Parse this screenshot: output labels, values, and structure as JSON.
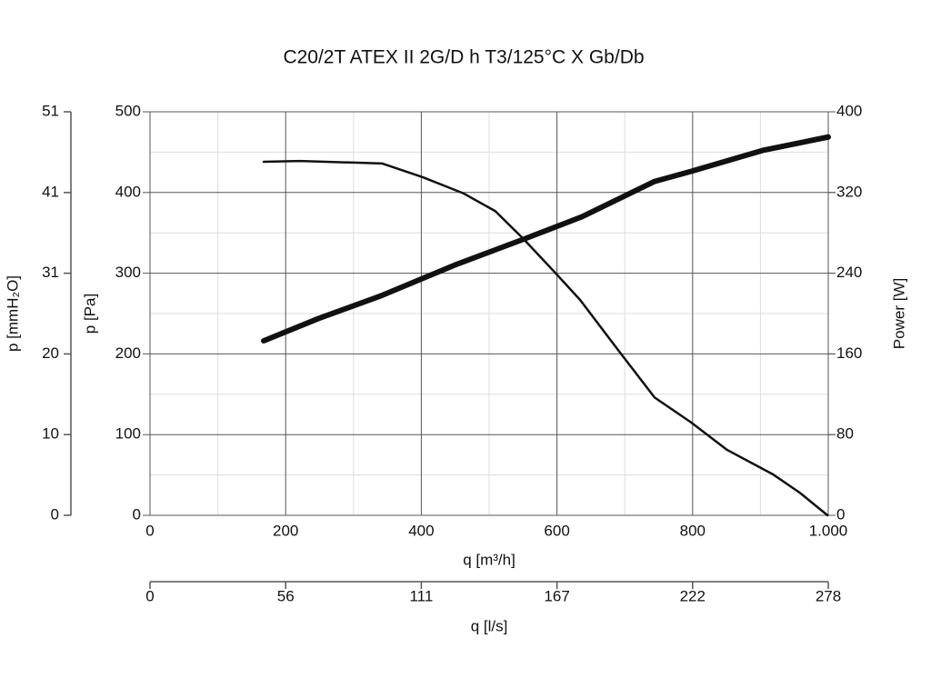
{
  "chart_data": {
    "type": "line",
    "title": "C20/2T ATEX II 2G/D h T3/125°C X Gb/Db",
    "xlabel": "q [m³/h]",
    "ylabel": "p [Pa]",
    "y2label": "Power [W]",
    "y3label": "p [mmH₂O]",
    "x2label": "q [l/s]",
    "xlim": [
      0,
      1000
    ],
    "xticks": [
      0,
      200,
      400,
      600,
      800,
      {
        "value": 1000,
        "label": "1.000"
      }
    ],
    "xminorticks": [
      100,
      300,
      500,
      700,
      900
    ],
    "ylim": [
      0,
      500
    ],
    "yticks": [
      0,
      100,
      200,
      300,
      400,
      500
    ],
    "yminorticks": [
      50,
      150,
      250,
      350,
      450
    ],
    "y2lim": [
      0,
      400
    ],
    "y2ticks": [
      0,
      80,
      160,
      240,
      320,
      400
    ],
    "y3lim": [
      0,
      50.99
    ],
    "y3ticks": [
      0,
      {
        "value": 10.2,
        "label": "10"
      },
      {
        "value": 20.39,
        "label": "20"
      },
      {
        "value": 30.59,
        "label": "31"
      },
      {
        "value": 40.79,
        "label": "41"
      },
      {
        "value": 50.99,
        "label": "51"
      }
    ],
    "x2lim": [
      0,
      277.78
    ],
    "x2ticks": [
      0,
      {
        "value": 55.56,
        "label": "56"
      },
      {
        "value": 111.11,
        "label": "111"
      },
      {
        "value": 166.67,
        "label": "167"
      },
      {
        "value": 222.22,
        "label": "222"
      },
      {
        "value": 277.78,
        "label": "278"
      }
    ],
    "grid": true,
    "series": [
      {
        "color": "#111111",
        "width": 2.5,
        "x": [
          167.6,
          221,
          342,
          402,
          462,
          509,
          550,
          597,
          634,
          690,
          744,
          798,
          851,
          918,
          958,
          999
        ],
        "values": [
          438,
          439,
          436,
          419,
          399,
          377,
          343,
          301,
          267,
          205,
          146,
          115,
          81,
          51,
          28,
          0
        ]
      },
      {
        "color": "#111111",
        "width": 6,
        "axis": "y2",
        "x": [
          167.6,
          248,
          342,
          449,
          556,
          637,
          744,
          798,
          905,
          1000
        ],
        "values": [
          173,
          195,
          218,
          248,
          275,
          296,
          331,
          341,
          362,
          375
        ]
      }
    ]
  }
}
